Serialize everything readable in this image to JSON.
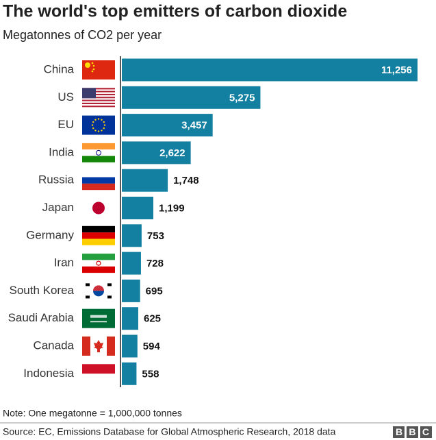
{
  "chart_data": {
    "type": "hbar",
    "title": "The world's top emitters of carbon dioxide",
    "subtitle": "Megatonnes of CO2 per year",
    "categories": [
      "China",
      "US",
      "EU",
      "India",
      "Russia",
      "Japan",
      "Germany",
      "Iran",
      "South Korea",
      "Saudi Arabia",
      "Canada",
      "Indonesia"
    ],
    "values": [
      11256,
      5275,
      3457,
      2622,
      1748,
      1199,
      753,
      728,
      695,
      625,
      594,
      558
    ],
    "value_labels": [
      "11,256",
      "5,275",
      "3,457",
      "2,622",
      "1,748",
      "1,199",
      "753",
      "728",
      "695",
      "625",
      "594",
      "558"
    ],
    "color": "#1380a1",
    "note": "Note: One megatonne = 1,000,000 tonnes",
    "source": "Source: EC, Emissions Database for Global Atmospheric Research, 2018 data",
    "logo": "BBC"
  }
}
